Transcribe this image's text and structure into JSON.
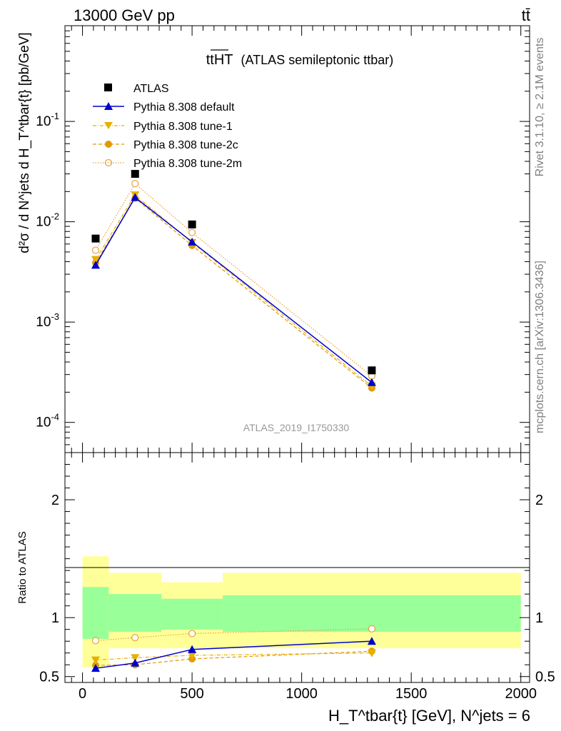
{
  "header": {
    "left": "13000 GeV pp",
    "right": "tt̄"
  },
  "side": {
    "rivet": "Rivet 3.1.10, ≥ 2.1M events",
    "mcplots": "mcplots.cern.ch [arXiv:1306.3436]"
  },
  "main": {
    "title_main": "ttHT",
    "title_sub": "(ATLAS semileptonic ttbar)",
    "analysis_id": "ATLAS_2019_I1750330",
    "ylabel": "d²σ / d N^jets d H_T^tbar{t} [pb/GeV]",
    "ytick_labels": [
      "10^-1",
      "10^-2",
      "10^-3",
      "10^-4"
    ]
  },
  "ratio": {
    "ylabel": "Ratio to ATLAS",
    "ytick_labels": [
      "2",
      "1",
      "0.5"
    ]
  },
  "xaxis": {
    "label": "H_T^tbar{t} [GeV], N^jets = 6",
    "tick_labels": [
      "0",
      "500",
      "1000",
      "1500",
      "2000"
    ]
  },
  "legend": {
    "atlas": "ATLAS",
    "default": "Pythia 8.308 default",
    "tune1": "Pythia 8.308 tune-1",
    "tune2c": "Pythia 8.308 tune-2c",
    "tune2m": "Pythia 8.308 tune-2m"
  },
  "colors": {
    "data": "#000000",
    "default": "#0000cc",
    "tune1": "#e6b000",
    "tune2c": "#e09a00",
    "tune2m": "#e8a13a",
    "band_stat": "#99ff99",
    "band_tot": "#ffff99"
  },
  "chart_data": {
    "type": "scatter",
    "x_log": false,
    "y_log": true,
    "xlim": [
      -80,
      2040
    ],
    "ylim_main": [
      5e-05,
      0.9
    ],
    "ylim_ratio": [
      0.45,
      2.4
    ],
    "bins": [
      [
        0,
        120
      ],
      [
        120,
        360
      ],
      [
        360,
        640
      ],
      [
        640,
        2000
      ]
    ],
    "x": [
      60,
      240,
      500,
      1320
    ],
    "series": [
      {
        "name": "ATLAS",
        "key": "atlas",
        "values": [
          0.0068,
          0.03,
          0.0094,
          0.00033
        ]
      },
      {
        "name": "Pythia 8.308 default",
        "key": "default",
        "values": [
          0.0037,
          0.0175,
          0.0063,
          0.00025
        ],
        "ratio": [
          0.57,
          0.615,
          0.73,
          0.8
        ]
      },
      {
        "name": "Pythia 8.308 tune-1",
        "key": "tune1",
        "values": [
          0.0042,
          0.0185,
          0.0062,
          0.00023
        ],
        "ratio": [
          0.64,
          0.66,
          0.68,
          0.7
        ]
      },
      {
        "name": "Pythia 8.308 tune-2c",
        "key": "tune2c",
        "values": [
          0.0039,
          0.0172,
          0.0058,
          0.00022
        ],
        "ratio": [
          0.595,
          0.6,
          0.65,
          0.715
        ]
      },
      {
        "name": "Pythia 8.308 tune-2m",
        "key": "tune2m",
        "values": [
          0.0052,
          0.024,
          0.0078,
          0.00029
        ],
        "ratio": [
          0.805,
          0.83,
          0.865,
          0.905
        ]
      }
    ],
    "ratio_band_stat": [
      [
        0.82,
        1.26
      ],
      [
        0.88,
        1.2
      ],
      [
        0.9,
        1.16
      ],
      [
        0.88,
        1.19
      ]
    ],
    "ratio_band_total": [
      [
        0.58,
        1.52
      ],
      [
        0.74,
        1.38
      ],
      [
        0.74,
        1.3
      ],
      [
        0.74,
        1.38
      ]
    ]
  }
}
